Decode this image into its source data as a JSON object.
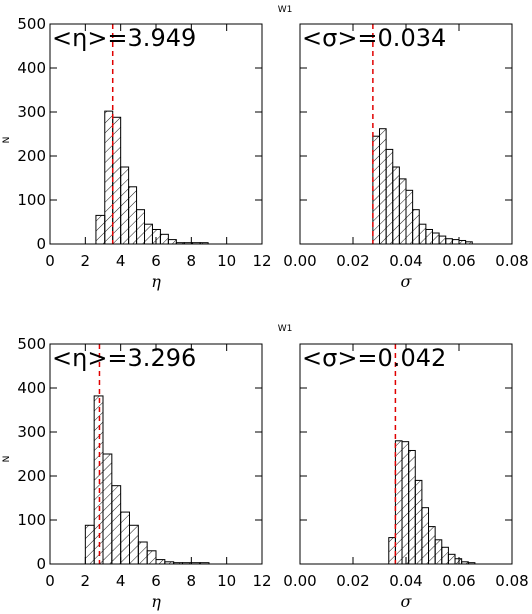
{
  "chart_data": [
    {
      "type": "bar",
      "title": "W1",
      "annotation": "<η>=3.949",
      "xlabel": "η",
      "ylabel": "N",
      "xlim": [
        0,
        12
      ],
      "ylim": [
        0,
        500
      ],
      "xticks": [
        "0",
        "2",
        "4",
        "6",
        "8",
        "10",
        "12"
      ],
      "yticks": [
        "0",
        "100",
        "200",
        "300",
        "400",
        "500"
      ],
      "bin_edges": [
        2.6,
        3.1,
        3.55,
        4.0,
        4.45,
        4.9,
        5.35,
        5.8,
        6.25,
        6.7,
        7.15,
        7.6,
        8.05,
        8.5,
        8.95
      ],
      "values": [
        65,
        302,
        288,
        175,
        130,
        78,
        45,
        33,
        22,
        10,
        3,
        3,
        3,
        3
      ],
      "mean_line": 3.55
    },
    {
      "type": "bar",
      "title": "",
      "annotation": "<σ>=0.034",
      "xlabel": "σ",
      "ylabel": "",
      "xlim": [
        0,
        0.08
      ],
      "ylim": [
        0,
        500
      ],
      "xticks": [
        "0.00",
        "0.02",
        "0.04",
        "0.06",
        "0.08"
      ],
      "yticks": [],
      "bin_edges": [
        0.0275,
        0.03,
        0.0325,
        0.035,
        0.0375,
        0.04,
        0.0425,
        0.045,
        0.0475,
        0.05,
        0.0525,
        0.055,
        0.0575,
        0.06,
        0.0625,
        0.065
      ],
      "values": [
        245,
        262,
        215,
        175,
        148,
        122,
        78,
        45,
        33,
        25,
        18,
        12,
        10,
        8,
        5
      ],
      "mean_line": 0.0275
    },
    {
      "type": "bar",
      "title": "W1",
      "annotation": "<η>=3.296",
      "xlabel": "η",
      "ylabel": "N",
      "xlim": [
        0,
        12
      ],
      "ylim": [
        0,
        500
      ],
      "xticks": [
        "0",
        "2",
        "4",
        "6",
        "8",
        "10",
        "12"
      ],
      "yticks": [
        "0",
        "100",
        "200",
        "300",
        "400",
        "500"
      ],
      "bin_edges": [
        2.0,
        2.5,
        3.0,
        3.5,
        4.0,
        4.5,
        5.0,
        5.5,
        6.0,
        6.5,
        7.0,
        7.5,
        8.0,
        8.5,
        9.0
      ],
      "values": [
        88,
        382,
        250,
        178,
        118,
        88,
        50,
        30,
        10,
        5,
        3,
        3,
        3,
        3
      ],
      "mean_line": 2.8
    },
    {
      "type": "bar",
      "title": "",
      "annotation": "<σ>=0.042",
      "xlabel": "σ",
      "ylabel": "",
      "xlim": [
        0,
        0.08
      ],
      "ylim": [
        0,
        500
      ],
      "xticks": [
        "0.00",
        "0.02",
        "0.04",
        "0.06",
        "0.08"
      ],
      "yticks": [],
      "bin_edges": [
        0.0335,
        0.036,
        0.0385,
        0.041,
        0.0435,
        0.046,
        0.0485,
        0.051,
        0.0535,
        0.056,
        0.0585,
        0.061,
        0.0635,
        0.066
      ],
      "values": [
        60,
        280,
        278,
        258,
        190,
        128,
        85,
        55,
        38,
        22,
        12,
        5,
        3
      ],
      "mean_line": 0.036
    }
  ]
}
